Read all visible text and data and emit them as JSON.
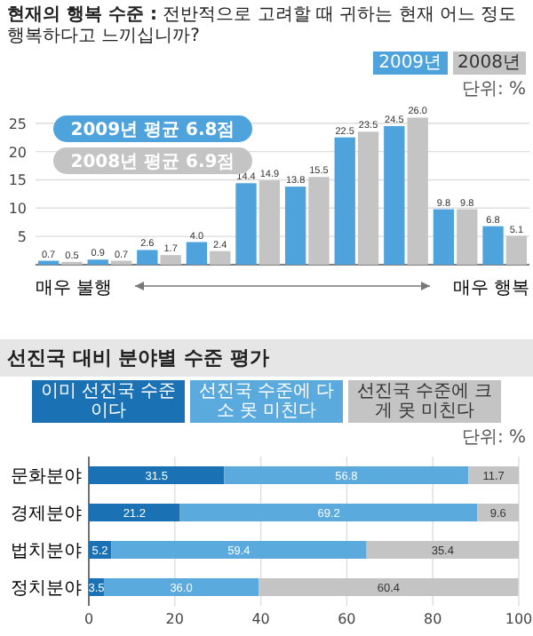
{
  "chart_data": [
    {
      "type": "bar",
      "title": "현재의 행복 수준 :",
      "subtitle": "전반적으로 고려할 때 귀하는 현재 어느 정도 행복하다고 느끼십니까?",
      "categories": [
        null,
        null,
        null,
        null,
        null,
        null,
        null,
        null,
        null,
        null
      ],
      "series": [
        {
          "name": "2009년",
          "color": "#4fa3dc",
          "values": [
            0.7,
            0.9,
            2.6,
            4.0,
            14.4,
            13.8,
            22.5,
            24.5,
            9.8,
            6.8
          ],
          "value_labels": [
            "0.7",
            "0.9",
            "2.6",
            "4.0",
            "14.4",
            "13.8",
            "22.5",
            "24.5",
            "9.8",
            "6.8"
          ]
        },
        {
          "name": "2008년",
          "color": "#c4c4c4",
          "values": [
            0.5,
            0.7,
            1.7,
            2.4,
            14.9,
            15.5,
            23.5,
            26.0,
            9.8,
            5.1
          ],
          "value_labels": [
            "0.5",
            "0.7",
            "1.7",
            "2.4",
            "14.9",
            "15.5",
            "23.5",
            "26.0",
            "9.8",
            "5.1"
          ]
        }
      ],
      "ylim": [
        0,
        27
      ],
      "yticks": [
        5,
        10,
        15,
        20,
        25
      ],
      "grid": "y",
      "legend": "top right",
      "annotations": [
        "단위: %",
        "2009년 평균 6.8점",
        "2008년 평균 6.9점",
        "매우 불행",
        "매우 행복"
      ]
    },
    {
      "type": "bar",
      "orientation": "horizontal",
      "stacked": true,
      "title": "선진국 대비 분야별 수준 평가",
      "categories": [
        "문화분야",
        "경제분야",
        "법치분야",
        "정치분야"
      ],
      "series": [
        {
          "name": "이미 선진국 수준이다",
          "color": "#1a72b5",
          "values": [
            31.5,
            21.2,
            5.2,
            3.5
          ],
          "value_labels": [
            "31.5",
            "21.2",
            "5.2",
            "3.5"
          ]
        },
        {
          "name": "선진국 수준에 다소 못 미친다",
          "color": "#5aaade",
          "values": [
            56.8,
            69.2,
            59.4,
            36.0
          ],
          "value_labels": [
            "56.8",
            "69.2",
            "59.4",
            "36.0"
          ]
        },
        {
          "name": "선진국 수준에 크게 못 미친다",
          "color": "#c4c4c4",
          "values": [
            11.7,
            9.6,
            35.4,
            60.4
          ],
          "value_labels": [
            "11.7",
            "9.6",
            "35.4",
            "60.4"
          ]
        }
      ],
      "xlim": [
        0,
        100
      ],
      "xticks": [
        0,
        20,
        40,
        60,
        80,
        100
      ],
      "grid": "x",
      "legend": "top",
      "annotations": [
        "단위: %"
      ]
    }
  ]
}
